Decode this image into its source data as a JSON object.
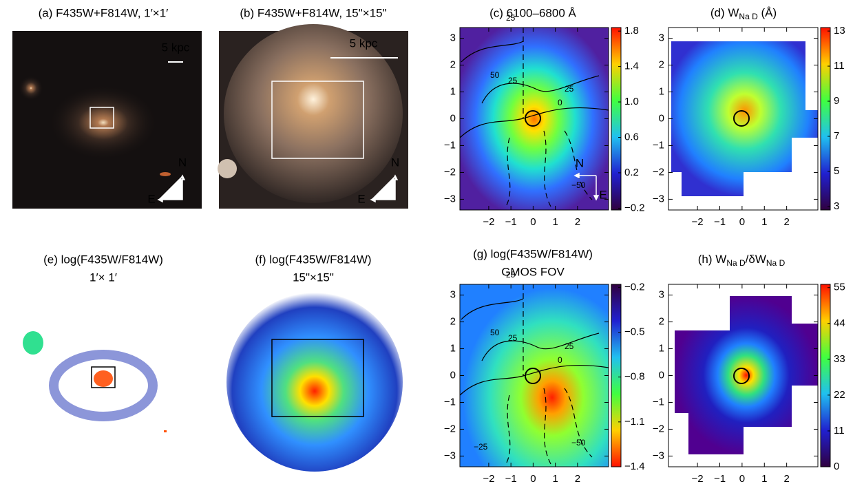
{
  "panels": [
    {
      "title_lines": [
        "(a) F435W+F814W, 1′×1′"
      ],
      "scale_label": "5 kpc",
      "north": "N",
      "east": "E"
    },
    {
      "title_lines": [
        "(b) F435W+F814W, 15\"×15\""
      ],
      "scale_label": "5 kpc",
      "north": "N",
      "east": "E"
    },
    {
      "title_lines": [
        "(c) 6100–6800 Å"
      ],
      "xlim": [
        -3.3,
        3.4
      ],
      "ylim": [
        -3.4,
        3.4
      ],
      "xticks": [
        {
          "value": -2,
          "label": "−2"
        },
        {
          "value": -1,
          "label": "−1"
        },
        0,
        1,
        2
      ],
      "yticks": [
        {
          "value": -3,
          "label": "−3"
        },
        {
          "value": -2,
          "label": "−2"
        },
        {
          "value": -1,
          "label": "−1"
        },
        0,
        1,
        2,
        3
      ],
      "colorbar": {
        "lim": [
          -0.22,
          1.84
        ],
        "ticks": [
          {
            "value": -0.2,
            "label": "−0.2"
          },
          0.2,
          0.6,
          {
            "value": 1,
            "label": "1.0"
          },
          1.4,
          1.8
        ]
      },
      "north": "N",
      "east": "E",
      "contour_labels": [
        "25",
        "50",
        "25",
        "25",
        "0",
        "−50"
      ]
    },
    {
      "title_parts": [
        "(d) W",
        "Na D",
        " (Å)"
      ],
      "xlim": [
        -3.3,
        3.4
      ],
      "ylim": [
        -3.4,
        3.4
      ],
      "xticks": [
        {
          "value": -2,
          "label": "−2"
        },
        {
          "value": -1,
          "label": "−1"
        },
        0,
        1,
        2
      ],
      "yticks": [
        {
          "value": -3,
          "label": "−3"
        },
        {
          "value": -2,
          "label": "−2"
        },
        {
          "value": -1,
          "label": "−1"
        },
        0,
        1,
        2,
        3
      ],
      "colorbar": {
        "lim": [
          2.8,
          13.2
        ],
        "ticks": [
          3,
          5,
          7,
          9,
          11,
          13
        ]
      }
    },
    {
      "title_lines": [
        "(e) log(F435W/F814W)",
        "1′× 1′"
      ]
    },
    {
      "title_lines": [
        "(f) log(F435W/F814W)",
        "15\"×15\""
      ]
    },
    {
      "title_lines": [
        "(g) log(F435W/F814W)",
        "GMOS FOV"
      ],
      "xlim": [
        -3.3,
        3.4
      ],
      "ylim": [
        -3.4,
        3.4
      ],
      "xticks": [
        {
          "value": -2,
          "label": "−2"
        },
        {
          "value": -1,
          "label": "−1"
        },
        0,
        1,
        2
      ],
      "yticks": [
        {
          "value": -3,
          "label": "−3"
        },
        {
          "value": -2,
          "label": "−2"
        },
        {
          "value": -1,
          "label": "−1"
        },
        0,
        1,
        2,
        3
      ],
      "colorbar": {
        "lim": [
          -1.4,
          -0.18
        ],
        "ticks": [
          {
            "value": -1.4,
            "label": "−1.4"
          },
          {
            "value": -1.1,
            "label": "−1.1"
          },
          {
            "value": -0.8,
            "label": "−0.8"
          },
          {
            "value": -0.5,
            "label": "−0.5"
          },
          {
            "value": -0.2,
            "label": "−0.2"
          }
        ]
      },
      "contour_labels": [
        "25",
        "50",
        "25",
        "25",
        "0",
        "−50",
        "−25"
      ]
    },
    {
      "title_parts": [
        "(h) W",
        "Na D",
        "/δW",
        "Na D"
      ],
      "xlim": [
        -3.3,
        3.4
      ],
      "ylim": [
        -3.4,
        3.4
      ],
      "xticks": [
        {
          "value": -2,
          "label": "−2"
        },
        {
          "value": -1,
          "label": "−1"
        },
        0,
        1,
        2
      ],
      "yticks": [
        {
          "value": -3,
          "label": "−3"
        },
        {
          "value": -2,
          "label": "−2"
        },
        {
          "value": -1,
          "label": "−1"
        },
        0,
        1,
        2,
        3
      ],
      "colorbar": {
        "lim": [
          0,
          56
        ],
        "ticks": [
          0,
          11,
          22,
          33,
          44,
          55
        ]
      }
    }
  ]
}
